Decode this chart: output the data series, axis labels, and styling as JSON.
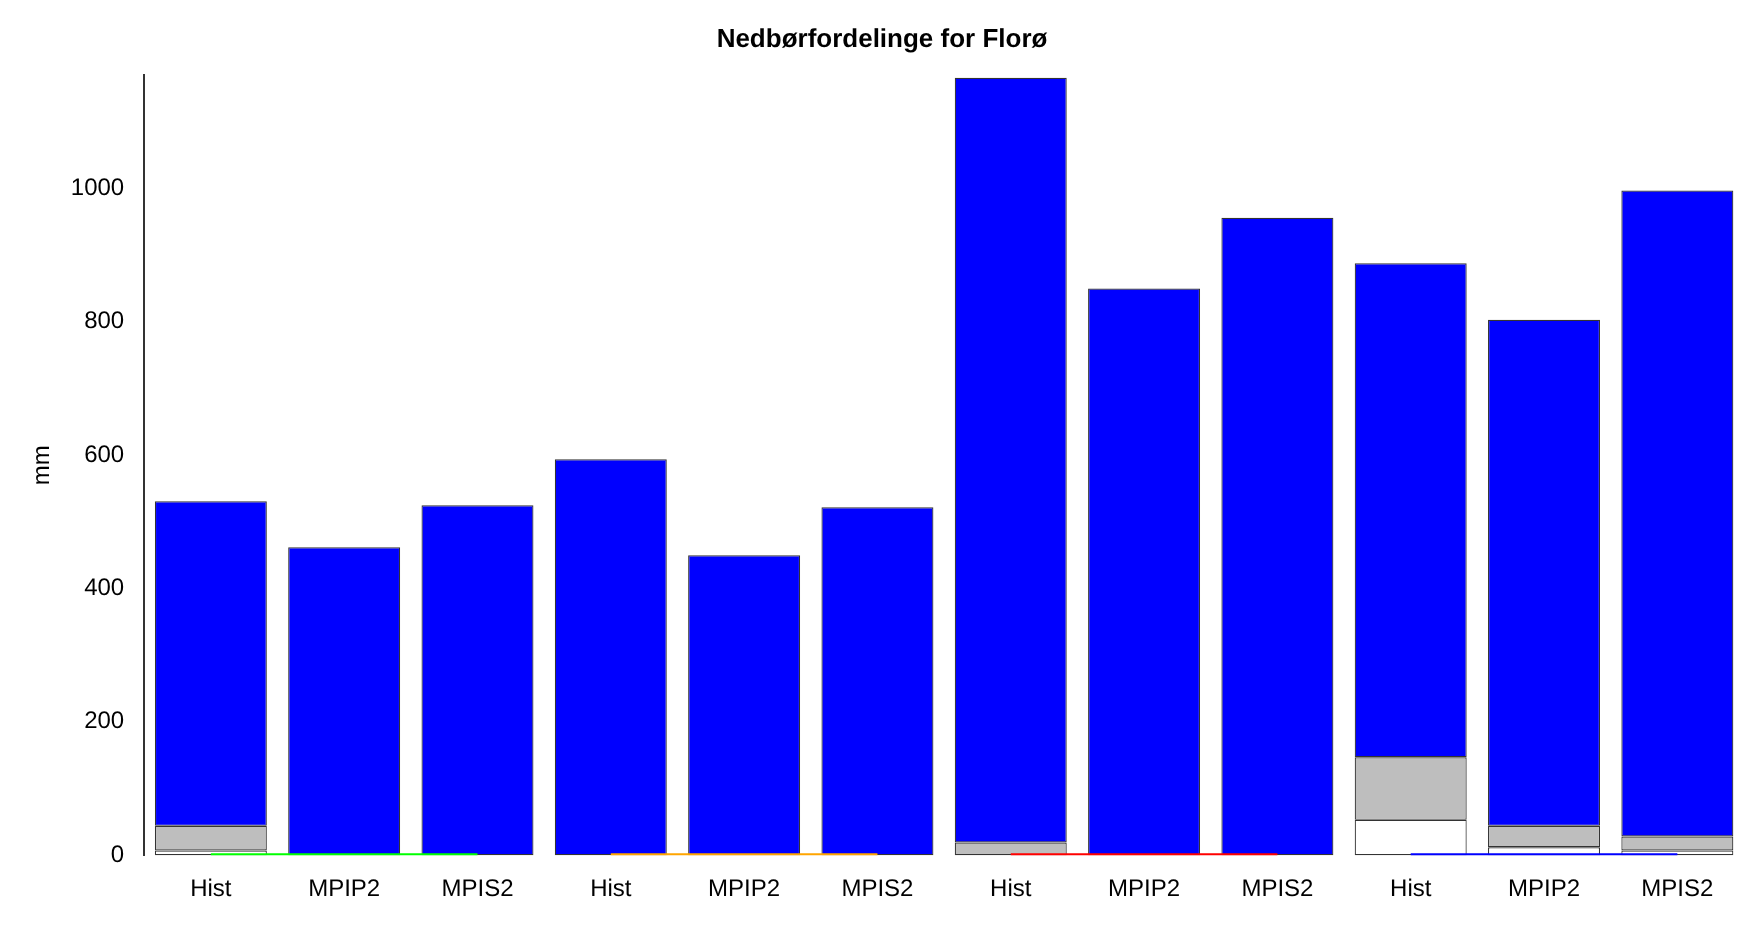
{
  "chart_data": {
    "type": "bar",
    "title": "Nedbørfordelinge for Florø",
    "ylabel": "mm",
    "categories": [
      "Hist",
      "MPIP2",
      "MPIS2",
      "Hist",
      "MPIP2",
      "MPIS2",
      "Hist",
      "MPIP2",
      "MPIS2",
      "Hist",
      "MPIP2",
      "MPIS2"
    ],
    "stacked": true,
    "series": [
      {
        "color": "#ffffff",
        "values": [
          7,
          0,
          0,
          0,
          0,
          0,
          0,
          0,
          0,
          53,
          12,
          7
        ]
      },
      {
        "color": "#bebebe",
        "values": [
          37,
          0,
          0,
          0,
          0,
          0,
          19,
          0,
          0,
          94,
          32,
          21
        ]
      },
      {
        "color": "#0000ff",
        "values": [
          487,
          462,
          525,
          594,
          450,
          522,
          1147,
          850,
          956,
          741,
          759,
          969
        ]
      },
      {
        "type": "line",
        "color": "#00ff00",
        "values": [
          0,
          0,
          0,
          null,
          null,
          null,
          null,
          null,
          null,
          null,
          null,
          null
        ]
      },
      {
        "type": "line",
        "color": "#ffa500",
        "values": [
          null,
          null,
          null,
          0,
          0,
          0,
          null,
          null,
          null,
          null,
          null,
          null
        ]
      },
      {
        "type": "line",
        "color": "#ff0000",
        "values": [
          null,
          null,
          null,
          null,
          null,
          null,
          0,
          0,
          0,
          null,
          null,
          null
        ]
      },
      {
        "type": "line",
        "color": "#0000ff",
        "values": [
          null,
          null,
          null,
          null,
          null,
          null,
          null,
          null,
          null,
          0,
          0,
          0
        ]
      }
    ],
    "ylim": [
      0,
      1170
    ],
    "yticks": [
      0,
      200,
      400,
      600,
      800,
      1000
    ],
    "grid": false,
    "legend": false
  }
}
